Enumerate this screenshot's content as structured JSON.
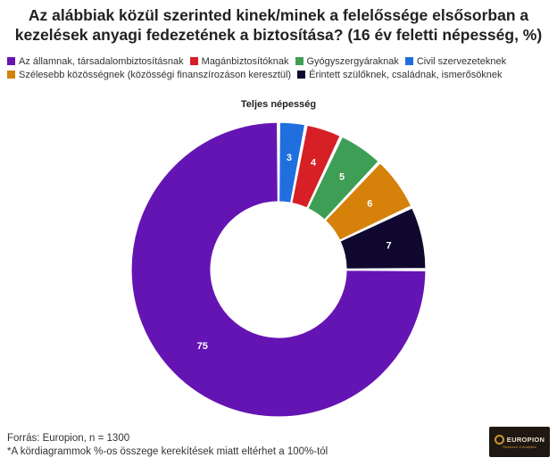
{
  "title_line1": "Az alábbiak közül szerinted kinek/minek a felelőssége elsősorban a",
  "title_line2": "kezelések anyagi fedezetének a biztosítása? (16 év feletti népesség, %)",
  "footer": {
    "source": "Forrás: Europion, n = 1300",
    "note": "*A kördiagrammok %-os összege kerekítések miatt eltérhet a 100%-tól"
  },
  "logo": {
    "name": "EUROPION",
    "tagline": "Research & Analytics"
  },
  "chart_data": {
    "type": "pie",
    "donut": true,
    "title": "Teljes népesség",
    "unit": "%",
    "start": "top, clockwise",
    "legend_position": "top-left",
    "categories": [
      "Civil szervezeteknek",
      "Magánbiztosítóknak",
      "Gyógyszergyáraknak",
      "Szélesebb közösségnek (közösségi finanszírozáson keresztül)",
      "Érintett szülőknek, családnak, ismerősöknek",
      "Az államnak, társadalombiztosításnak"
    ],
    "values": [
      3,
      4,
      5,
      6,
      7,
      75
    ],
    "colors": [
      "#1f6fde",
      "#d71f26",
      "#3f9e55",
      "#d5810a",
      "#10082e",
      "#6514b4"
    ],
    "label_colors": [
      "#ffffff",
      "#ffffff",
      "#ffffff",
      "#ffffff",
      "#ffffff",
      "#ffffff"
    ],
    "legend_rows": [
      [
        {
          "label": "Az államnak, társadalombiztosításnak",
          "color": "#6514b4"
        },
        {
          "label": "Magánbiztosítóknak",
          "color": "#d71f26"
        },
        {
          "label": "Gyógyszergyáraknak",
          "color": "#3f9e55"
        },
        {
          "label": "Civil szervezeteknek",
          "color": "#1f6fde"
        }
      ],
      [
        {
          "label": "Szélesebb közösségnek (közösségi finanszírozáson keresztül)",
          "color": "#d5810a"
        },
        {
          "label": "Érintett szülőknek, családnak, ismerősöknek",
          "color": "#10082e"
        }
      ]
    ]
  }
}
